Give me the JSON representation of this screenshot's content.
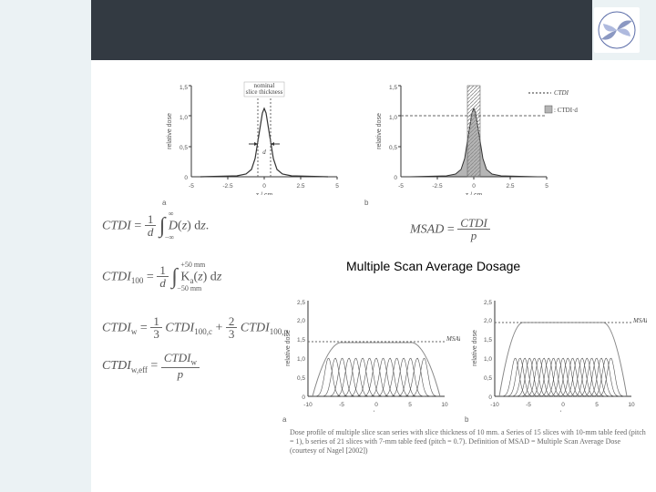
{
  "msad_title": "Multiple Scan Average Dosage",
  "top_charts": {
    "a": {
      "type": "line",
      "xlabel": "z / cm",
      "ylabel": "relative dose",
      "xlim": [
        -5,
        5
      ],
      "ylim": [
        0,
        1.5
      ],
      "xticks": [
        -5,
        -2.5,
        0,
        2.5,
        5
      ],
      "yticks": [
        0,
        0.5,
        1.0,
        1.5
      ],
      "annotation_top": "nominal\nslice thickness",
      "annotation_d": "d",
      "curve_color": "#333333",
      "dash_color": "#666666",
      "background": "#ffffff",
      "axis_color": "#333333"
    },
    "b": {
      "type": "line",
      "xlabel": "z / cm",
      "ylabel": "relative dose",
      "xlim": [
        -5,
        5
      ],
      "ylim": [
        0,
        1.5
      ],
      "xticks": [
        -5,
        -2.5,
        0,
        2.5,
        5
      ],
      "yticks": [
        0,
        0.5,
        1.0,
        1.5
      ],
      "legend": [
        "CTDI",
        "CTDI·d"
      ],
      "curve_color": "#333333",
      "fill_color": "#b5b5b5",
      "hatch_color": "#888888",
      "background": "#ffffff",
      "axis_color": "#333333"
    }
  },
  "equations": {
    "ctdi": "CTDI = (1/d) ∫_{-∞}^{∞} D(z) dz.",
    "ctdi100": "CTDI_{100} = (1/d) ∫_{-50mm}^{+50mm} K_a(z) dz",
    "ctdiw": "CTDI_w = (1/3) CTDI_{100,c} + (2/3) CTDI_{100,p}",
    "ctdiweff": "CTDI_{w,eff} = CTDI_w / p",
    "msad": "MSAD = CTDI / p"
  },
  "bottom_charts": {
    "a": {
      "type": "line-multi",
      "xlabel": "z / cm",
      "ylabel": "relative dose",
      "xlim": [
        -10,
        10
      ],
      "ylim": [
        0,
        2.5
      ],
      "xticks": [
        -10,
        -5,
        0,
        5,
        10
      ],
      "yticks": [
        0,
        0.5,
        1.0,
        1.5,
        2.0,
        2.5
      ],
      "n_peaks": 15,
      "peak_spacing": 1.0,
      "msad_level": 1.5,
      "msad_label": "MSAD",
      "curve_color": "#555555",
      "envelope_color": "#888888",
      "background": "#ffffff"
    },
    "b": {
      "type": "line-multi",
      "xlabel": "z / cm",
      "ylabel": "relative dose",
      "xlim": [
        -10,
        10
      ],
      "ylim": [
        0,
        2.5
      ],
      "xticks": [
        -10,
        -5,
        0,
        5,
        10
      ],
      "yticks": [
        0,
        0.5,
        1.0,
        1.5,
        2.0,
        2.5
      ],
      "n_peaks": 21,
      "peak_spacing": 0.7,
      "msad_level": 2.0,
      "msad_label": "MSAD",
      "curve_color": "#555555",
      "envelope_color": "#888888",
      "background": "#ffffff"
    }
  },
  "caption": "Dose profile of multiple slice scan series with slice thickness of 10 mm. a Series of 15 slices with 10-mm table feed (pitch = 1), b series of 21 slices with 7-mm table feed (pitch = 0.7). Definition of MSAD = Multiple Scan Average Dose (courtesy of Nagel [2002])",
  "panel_labels": {
    "a": "a",
    "b": "b"
  },
  "colors": {
    "header_bg": "#ebf2f4",
    "header_dark": "#333a42",
    "sidebar_bg": "#ebf2f4",
    "page_bg": "#ffffff",
    "text": "#000000",
    "eq_text": "#555555"
  }
}
